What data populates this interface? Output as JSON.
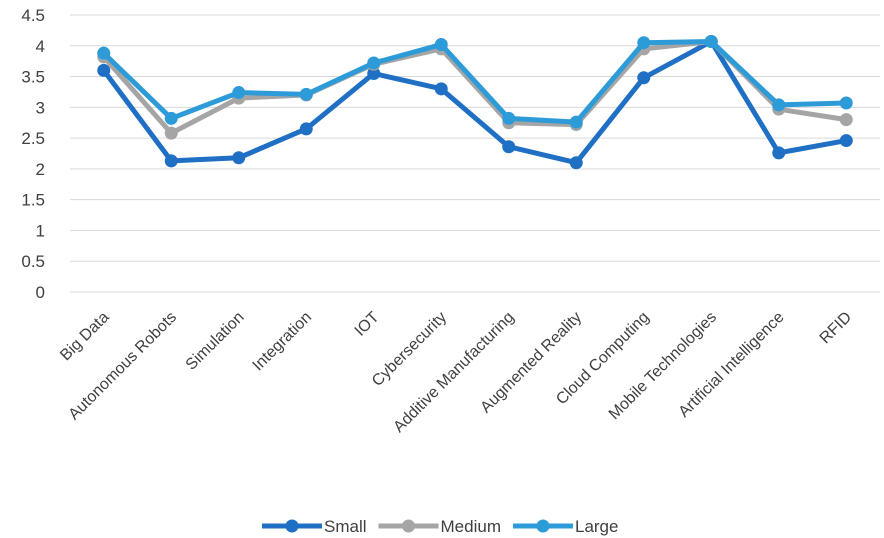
{
  "chart_data": {
    "type": "line",
    "title": "",
    "xlabel": "",
    "ylabel": "",
    "categories": [
      "Big Data",
      "Autonomous Robots",
      "Simulation",
      "Integration",
      "IOT",
      "Cybersecurity",
      "Additive Manufacturing",
      "Augmented Reality",
      "Cloud Computing",
      "Mobile Technologies",
      "Artificial Intelligence",
      "RFID"
    ],
    "ylim": [
      0,
      4.5
    ],
    "yticks": [
      "0",
      "0.5",
      "1",
      "1.5",
      "2",
      "2.5",
      "3",
      "3.5",
      "4",
      "4.5"
    ],
    "grid": true,
    "legend_position": "bottom",
    "series": [
      {
        "name": "Small",
        "color": "#1f6fc5",
        "values": [
          3.6,
          2.13,
          2.18,
          2.65,
          3.55,
          3.3,
          2.36,
          2.1,
          3.48,
          4.07,
          2.26,
          2.46
        ]
      },
      {
        "name": "Medium",
        "color": "#a5a5a5",
        "values": [
          3.82,
          2.58,
          3.15,
          3.2,
          3.7,
          3.95,
          2.75,
          2.72,
          3.95,
          4.07,
          2.97,
          2.8
        ]
      },
      {
        "name": "Large",
        "color": "#2e9bd9",
        "values": [
          3.88,
          2.82,
          3.24,
          3.21,
          3.72,
          4.02,
          2.82,
          2.76,
          4.05,
          4.07,
          3.04,
          3.07
        ]
      }
    ]
  }
}
